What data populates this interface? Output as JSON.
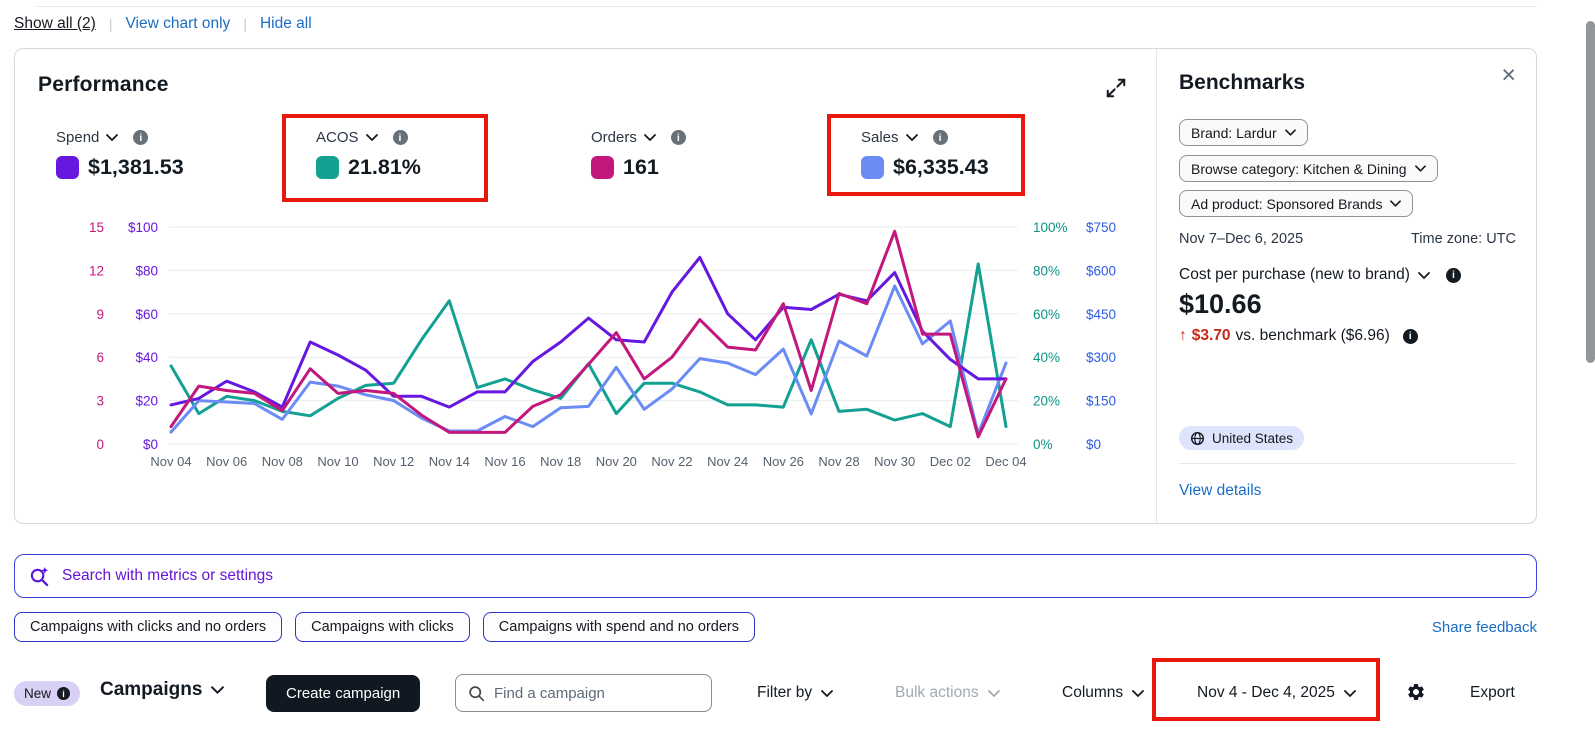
{
  "annotation_color": "#e8190c",
  "page": {
    "links": {
      "show_all": "Show all (2)",
      "view_chart_only": "View chart only",
      "hide_all": "Hide all"
    }
  },
  "performance": {
    "title": "Performance",
    "metrics": [
      {
        "id": "spend",
        "label": "Spend",
        "value": "$1,381.53",
        "color": "#6618e0"
      },
      {
        "id": "acos",
        "label": "ACOS",
        "value": "21.81%",
        "color": "#12a192"
      },
      {
        "id": "orders",
        "label": "Orders",
        "value": "161",
        "color": "#c2187e"
      },
      {
        "id": "sales",
        "label": "Sales",
        "value": "$6,335.43",
        "color": "#6b8bf5"
      }
    ]
  },
  "chart_data": {
    "type": "line",
    "title": "Performance",
    "grid": true,
    "x_tick_every": 2,
    "x": [
      "Nov 04",
      "Nov 05",
      "Nov 06",
      "Nov 07",
      "Nov 08",
      "Nov 09",
      "Nov 10",
      "Nov 11",
      "Nov 12",
      "Nov 13",
      "Nov 14",
      "Nov 15",
      "Nov 16",
      "Nov 17",
      "Nov 18",
      "Nov 19",
      "Nov 20",
      "Nov 21",
      "Nov 22",
      "Nov 23",
      "Nov 24",
      "Nov 25",
      "Nov 26",
      "Nov 27",
      "Nov 28",
      "Nov 29",
      "Nov 30",
      "Dec 01",
      "Dec 02",
      "Dec 03",
      "Dec 04"
    ],
    "axes": {
      "left_orders": {
        "ticks": [
          "15",
          "12",
          "9",
          "6",
          "3",
          "0"
        ],
        "min": 0,
        "max": 15,
        "color": "#c2187e"
      },
      "left_spend": {
        "ticks": [
          "$100",
          "$80",
          "$60",
          "$40",
          "$20",
          "$0"
        ],
        "min": 0,
        "max": 100,
        "color": "#6618e0"
      },
      "right_acos": {
        "ticks": [
          "100%",
          "80%",
          "60%",
          "40%",
          "20%",
          "0%"
        ],
        "min": 0,
        "max": 100,
        "color": "#0d9488"
      },
      "right_sales": {
        "ticks": [
          "$750",
          "$600",
          "$450",
          "$300",
          "$150",
          "$0"
        ],
        "min": 0,
        "max": 750,
        "color": "#2e5ce6"
      }
    },
    "series": [
      {
        "name": "Spend",
        "axis_max": 100,
        "color": "#6618e0",
        "values": [
          18,
          21,
          29,
          24,
          17,
          47,
          41,
          34,
          22,
          22,
          17,
          24,
          24,
          38,
          47,
          58,
          48,
          47,
          70,
          86,
          60,
          48,
          63,
          62,
          69,
          66,
          79,
          52,
          39,
          30,
          30
        ]
      },
      {
        "name": "ACOS",
        "axis_max": 100,
        "color": "#12a192",
        "values": [
          36,
          14,
          22,
          20,
          15,
          13,
          21,
          27,
          28,
          48,
          66,
          26,
          30,
          25,
          21,
          37,
          14,
          28,
          28,
          24,
          18,
          18,
          17,
          48,
          15,
          16,
          11,
          14,
          8,
          83,
          8
        ]
      },
      {
        "name": "Orders",
        "axis_max": 15,
        "color": "#c2187e",
        "values": [
          1.2,
          4,
          3.7,
          3.5,
          2.3,
          5.2,
          3.5,
          3.7,
          3.5,
          2,
          0.8,
          0.8,
          0.8,
          2.6,
          3.4,
          5.5,
          7.7,
          4.5,
          6,
          8.6,
          6.7,
          6.5,
          9.7,
          3.7,
          10.4,
          9.7,
          14.7,
          7.6,
          7.6,
          0.5,
          4.5
        ]
      },
      {
        "name": "Sales",
        "axis_max": 750,
        "color": "#6b8bf5",
        "values": [
          41,
          150,
          145,
          140,
          85,
          214,
          200,
          170,
          150,
          90,
          45,
          45,
          95,
          60,
          125,
          130,
          265,
          120,
          190,
          295,
          280,
          240,
          328,
          104,
          356,
          304,
          546,
          346,
          425,
          35,
          280
        ]
      }
    ]
  },
  "benchmarks": {
    "title": "Benchmarks",
    "close_icon": "×",
    "filters": [
      {
        "label": "Brand: Lardur"
      },
      {
        "label": "Browse category: Kitchen & Dining"
      },
      {
        "label": "Ad product: Sponsored Brands"
      }
    ],
    "date_range": "Nov 7–Dec 6, 2025",
    "timezone": "Time zone: UTC",
    "metric_label": "Cost per purchase (new to brand)",
    "metric_value": "$10.66",
    "delta_arrow": "↑",
    "delta_value": "$3.70",
    "delta_rest": "vs. benchmark ($6.96)",
    "region": "United States",
    "view_details": "View details"
  },
  "search": {
    "placeholder": "Search with metrics or settings"
  },
  "filter_pills": [
    {
      "label": "Campaigns with clicks and no orders"
    },
    {
      "label": "Campaigns with clicks"
    },
    {
      "label": "Campaigns with spend and no orders"
    }
  ],
  "share_feedback": "Share feedback",
  "campaigns_toolbar": {
    "new_badge": "New",
    "title": "Campaigns",
    "create_button": "Create campaign",
    "find_placeholder": "Find a campaign",
    "filter_by": "Filter by",
    "bulk_actions": "Bulk actions",
    "columns": "Columns",
    "date_range": "Nov 4 - Dec 4, 2025",
    "export": "Export"
  }
}
